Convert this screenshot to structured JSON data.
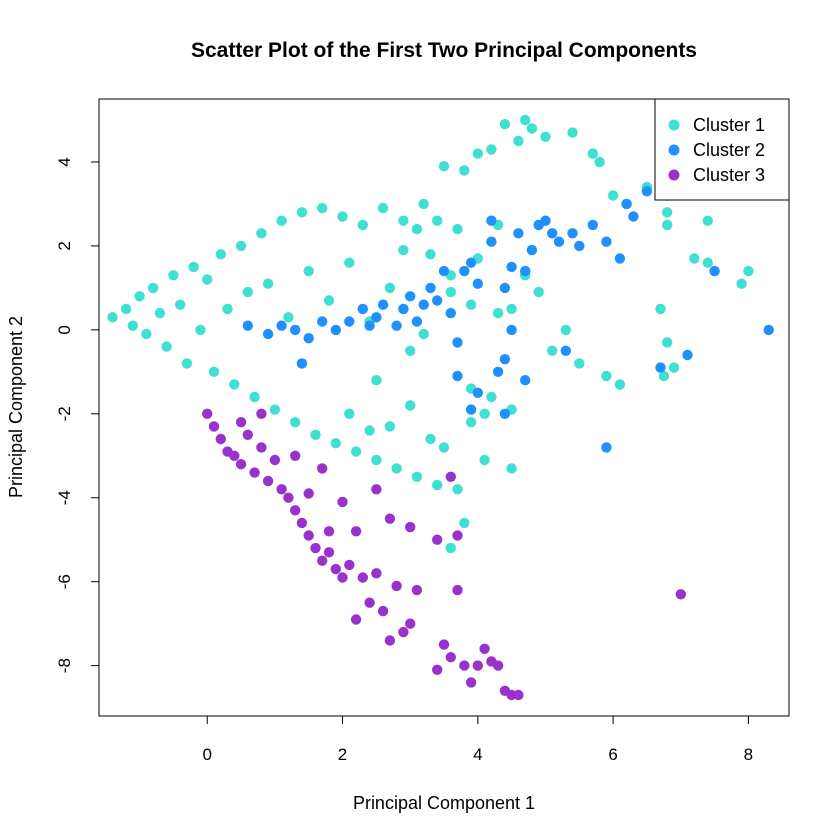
{
  "chart_data": {
    "type": "scatter",
    "title": "Scatter Plot of the First Two Principal Components",
    "xlabel": "Principal Component 1",
    "ylabel": "Principal Component 2",
    "xlim": [
      -1.6,
      8.6
    ],
    "ylim": [
      -9.2,
      5.5
    ],
    "xticks": [
      0,
      2,
      4,
      6,
      8
    ],
    "yticks": [
      -8,
      -6,
      -4,
      -2,
      0,
      2,
      4
    ],
    "grid": false,
    "legend": "top-right",
    "series": [
      {
        "name": "Cluster 1",
        "color": "#40E0D0",
        "points": [
          [
            -1.4,
            0.3
          ],
          [
            -1.2,
            0.5
          ],
          [
            -1.1,
            0.1
          ],
          [
            -1.0,
            0.8
          ],
          [
            -0.9,
            -0.1
          ],
          [
            -0.8,
            1.0
          ],
          [
            -0.7,
            0.4
          ],
          [
            -0.6,
            -0.4
          ],
          [
            -0.5,
            1.3
          ],
          [
            -0.4,
            0.6
          ],
          [
            -0.3,
            -0.8
          ],
          [
            -0.2,
            1.5
          ],
          [
            -0.1,
            0.0
          ],
          [
            0.0,
            1.2
          ],
          [
            0.1,
            -1.0
          ],
          [
            0.2,
            1.8
          ],
          [
            0.3,
            0.5
          ],
          [
            0.4,
            -1.3
          ],
          [
            0.5,
            2.0
          ],
          [
            0.6,
            0.9
          ],
          [
            0.7,
            -1.6
          ],
          [
            0.8,
            2.3
          ],
          [
            0.9,
            1.1
          ],
          [
            1.0,
            -1.9
          ],
          [
            1.1,
            2.6
          ],
          [
            1.2,
            0.3
          ],
          [
            1.3,
            -2.2
          ],
          [
            1.4,
            2.8
          ],
          [
            1.5,
            1.4
          ],
          [
            1.6,
            -2.5
          ],
          [
            1.7,
            2.9
          ],
          [
            1.8,
            0.7
          ],
          [
            1.9,
            -2.7
          ],
          [
            2.0,
            2.7
          ],
          [
            2.1,
            1.6
          ],
          [
            2.2,
            -2.9
          ],
          [
            2.3,
            2.5
          ],
          [
            2.4,
            0.2
          ],
          [
            2.5,
            -3.1
          ],
          [
            2.6,
            2.9
          ],
          [
            2.7,
            1.0
          ],
          [
            2.8,
            -3.3
          ],
          [
            2.9,
            2.6
          ],
          [
            3.0,
            -0.5
          ],
          [
            3.1,
            -3.5
          ],
          [
            3.2,
            3.0
          ],
          [
            3.3,
            1.8
          ],
          [
            3.4,
            -3.7
          ],
          [
            3.5,
            3.9
          ],
          [
            3.6,
            0.9
          ],
          [
            3.7,
            -3.8
          ],
          [
            3.8,
            3.8
          ],
          [
            3.9,
            -1.4
          ],
          [
            4.0,
            4.2
          ],
          [
            4.1,
            -2.0
          ],
          [
            4.2,
            4.3
          ],
          [
            4.3,
            0.4
          ],
          [
            4.4,
            4.9
          ],
          [
            4.5,
            -3.3
          ],
          [
            4.6,
            4.5
          ],
          [
            4.7,
            5.0
          ],
          [
            4.8,
            4.8
          ],
          [
            4.9,
            0.9
          ],
          [
            5.0,
            4.6
          ],
          [
            5.1,
            -0.5
          ],
          [
            5.3,
            0.0
          ],
          [
            5.4,
            4.7
          ],
          [
            5.5,
            -0.8
          ],
          [
            5.7,
            4.2
          ],
          [
            5.8,
            4.0
          ],
          [
            5.9,
            -1.1
          ],
          [
            6.0,
            3.2
          ],
          [
            6.1,
            -1.3
          ],
          [
            6.2,
            3.0
          ],
          [
            6.5,
            3.4
          ],
          [
            6.7,
            0.5
          ],
          [
            6.8,
            -0.3
          ],
          [
            6.8,
            2.8
          ],
          [
            6.9,
            -0.9
          ],
          [
            6.75,
            -1.1
          ],
          [
            6.8,
            2.5
          ],
          [
            7.2,
            1.7
          ],
          [
            7.4,
            1.6
          ],
          [
            7.4,
            2.6
          ],
          [
            7.9,
            1.1
          ],
          [
            8.0,
            1.4
          ],
          [
            4.5,
            -1.9
          ],
          [
            4.1,
            -3.1
          ],
          [
            3.8,
            -4.6
          ],
          [
            3.6,
            -5.2
          ],
          [
            2.1,
            -2.0
          ],
          [
            2.5,
            -1.2
          ],
          [
            3.0,
            -1.8
          ],
          [
            3.3,
            -2.6
          ],
          [
            2.7,
            -2.3
          ],
          [
            3.5,
            -2.8
          ],
          [
            3.9,
            -2.2
          ],
          [
            4.2,
            -1.6
          ],
          [
            2.9,
            1.9
          ],
          [
            3.1,
            2.4
          ],
          [
            3.4,
            2.6
          ],
          [
            3.7,
            2.4
          ],
          [
            3.6,
            1.3
          ],
          [
            3.9,
            0.6
          ],
          [
            4.5,
            0.5
          ],
          [
            4.0,
            1.7
          ],
          [
            4.3,
            2.5
          ],
          [
            4.7,
            1.3
          ],
          [
            3.2,
            -0.1
          ],
          [
            2.4,
            -2.4
          ]
        ]
      },
      {
        "name": "Cluster 2",
        "color": "#1E90FF",
        "points": [
          [
            0.6,
            0.1
          ],
          [
            0.9,
            -0.1
          ],
          [
            1.1,
            0.1
          ],
          [
            1.3,
            0.0
          ],
          [
            1.5,
            -0.2
          ],
          [
            1.7,
            0.2
          ],
          [
            1.9,
            0.0
          ],
          [
            2.1,
            0.2
          ],
          [
            2.3,
            0.5
          ],
          [
            2.5,
            0.3
          ],
          [
            2.6,
            0.6
          ],
          [
            2.8,
            0.1
          ],
          [
            2.9,
            0.5
          ],
          [
            3.0,
            0.8
          ],
          [
            3.1,
            0.2
          ],
          [
            3.2,
            0.6
          ],
          [
            3.3,
            1.0
          ],
          [
            3.4,
            0.7
          ],
          [
            3.5,
            1.4
          ],
          [
            3.6,
            0.4
          ],
          [
            3.7,
            -0.3
          ],
          [
            3.9,
            1.6
          ],
          [
            4.0,
            1.1
          ],
          [
            4.2,
            2.1
          ],
          [
            4.3,
            -1.0
          ],
          [
            4.4,
            -0.7
          ],
          [
            4.5,
            1.5
          ],
          [
            4.6,
            2.3
          ],
          [
            4.7,
            1.4
          ],
          [
            4.8,
            1.9
          ],
          [
            4.9,
            2.5
          ],
          [
            5.1,
            2.3
          ],
          [
            5.2,
            2.1
          ],
          [
            5.4,
            2.3
          ],
          [
            5.5,
            2.0
          ],
          [
            5.7,
            2.5
          ],
          [
            5.9,
            2.1
          ],
          [
            6.1,
            1.7
          ],
          [
            6.2,
            3.0
          ],
          [
            6.3,
            2.7
          ],
          [
            6.5,
            3.3
          ],
          [
            6.7,
            -0.9
          ],
          [
            6.8,
            3.2
          ],
          [
            7.1,
            -0.6
          ],
          [
            7.5,
            1.4
          ],
          [
            8.3,
            0.0
          ],
          [
            5.9,
            -2.8
          ],
          [
            4.4,
            -2.0
          ],
          [
            4.5,
            0.0
          ],
          [
            5.3,
            -0.5
          ],
          [
            3.9,
            -1.9
          ],
          [
            4.0,
            -1.5
          ],
          [
            3.7,
            -1.1
          ],
          [
            4.7,
            -1.2
          ],
          [
            4.4,
            1.0
          ],
          [
            3.8,
            1.4
          ],
          [
            4.2,
            2.6
          ],
          [
            5.0,
            2.6
          ],
          [
            2.4,
            0.1
          ],
          [
            1.4,
            -0.8
          ]
        ]
      },
      {
        "name": "Cluster 3",
        "color": "#9932CC",
        "points": [
          [
            0.0,
            -2.0
          ],
          [
            0.1,
            -2.3
          ],
          [
            0.2,
            -2.6
          ],
          [
            0.3,
            -2.9
          ],
          [
            0.4,
            -3.0
          ],
          [
            0.5,
            -3.2
          ],
          [
            0.6,
            -2.5
          ],
          [
            0.7,
            -3.4
          ],
          [
            0.8,
            -2.8
          ],
          [
            0.9,
            -3.6
          ],
          [
            1.0,
            -3.1
          ],
          [
            1.1,
            -3.8
          ],
          [
            1.2,
            -4.0
          ],
          [
            1.3,
            -4.3
          ],
          [
            1.4,
            -4.6
          ],
          [
            1.5,
            -4.9
          ],
          [
            1.6,
            -5.2
          ],
          [
            1.7,
            -5.5
          ],
          [
            1.8,
            -5.3
          ],
          [
            1.9,
            -5.7
          ],
          [
            2.0,
            -5.9
          ],
          [
            2.1,
            -5.6
          ],
          [
            2.2,
            -6.9
          ],
          [
            2.3,
            -5.9
          ],
          [
            2.4,
            -6.5
          ],
          [
            2.5,
            -5.8
          ],
          [
            2.6,
            -6.7
          ],
          [
            2.7,
            -7.4
          ],
          [
            2.8,
            -6.1
          ],
          [
            2.9,
            -7.2
          ],
          [
            3.0,
            -7.0
          ],
          [
            3.1,
            -6.2
          ],
          [
            3.4,
            -8.1
          ],
          [
            3.5,
            -7.5
          ],
          [
            3.6,
            -7.8
          ],
          [
            3.7,
            -6.2
          ],
          [
            3.8,
            -8.0
          ],
          [
            3.9,
            -8.4
          ],
          [
            4.0,
            -8.0
          ],
          [
            4.1,
            -7.6
          ],
          [
            4.2,
            -7.9
          ],
          [
            4.3,
            -8.0
          ],
          [
            4.4,
            -8.6
          ],
          [
            4.5,
            -8.7
          ],
          [
            4.6,
            -8.7
          ],
          [
            7.0,
            -6.3
          ],
          [
            1.5,
            -3.9
          ],
          [
            1.8,
            -4.8
          ],
          [
            2.2,
            -4.8
          ],
          [
            2.7,
            -4.5
          ],
          [
            3.0,
            -4.7
          ],
          [
            3.4,
            -5.0
          ],
          [
            3.7,
            -4.9
          ],
          [
            2.0,
            -4.1
          ],
          [
            1.7,
            -3.3
          ],
          [
            0.5,
            -2.2
          ],
          [
            0.8,
            -2.0
          ],
          [
            1.3,
            -3.0
          ],
          [
            2.5,
            -3.8
          ],
          [
            3.6,
            -3.5
          ]
        ]
      }
    ]
  }
}
